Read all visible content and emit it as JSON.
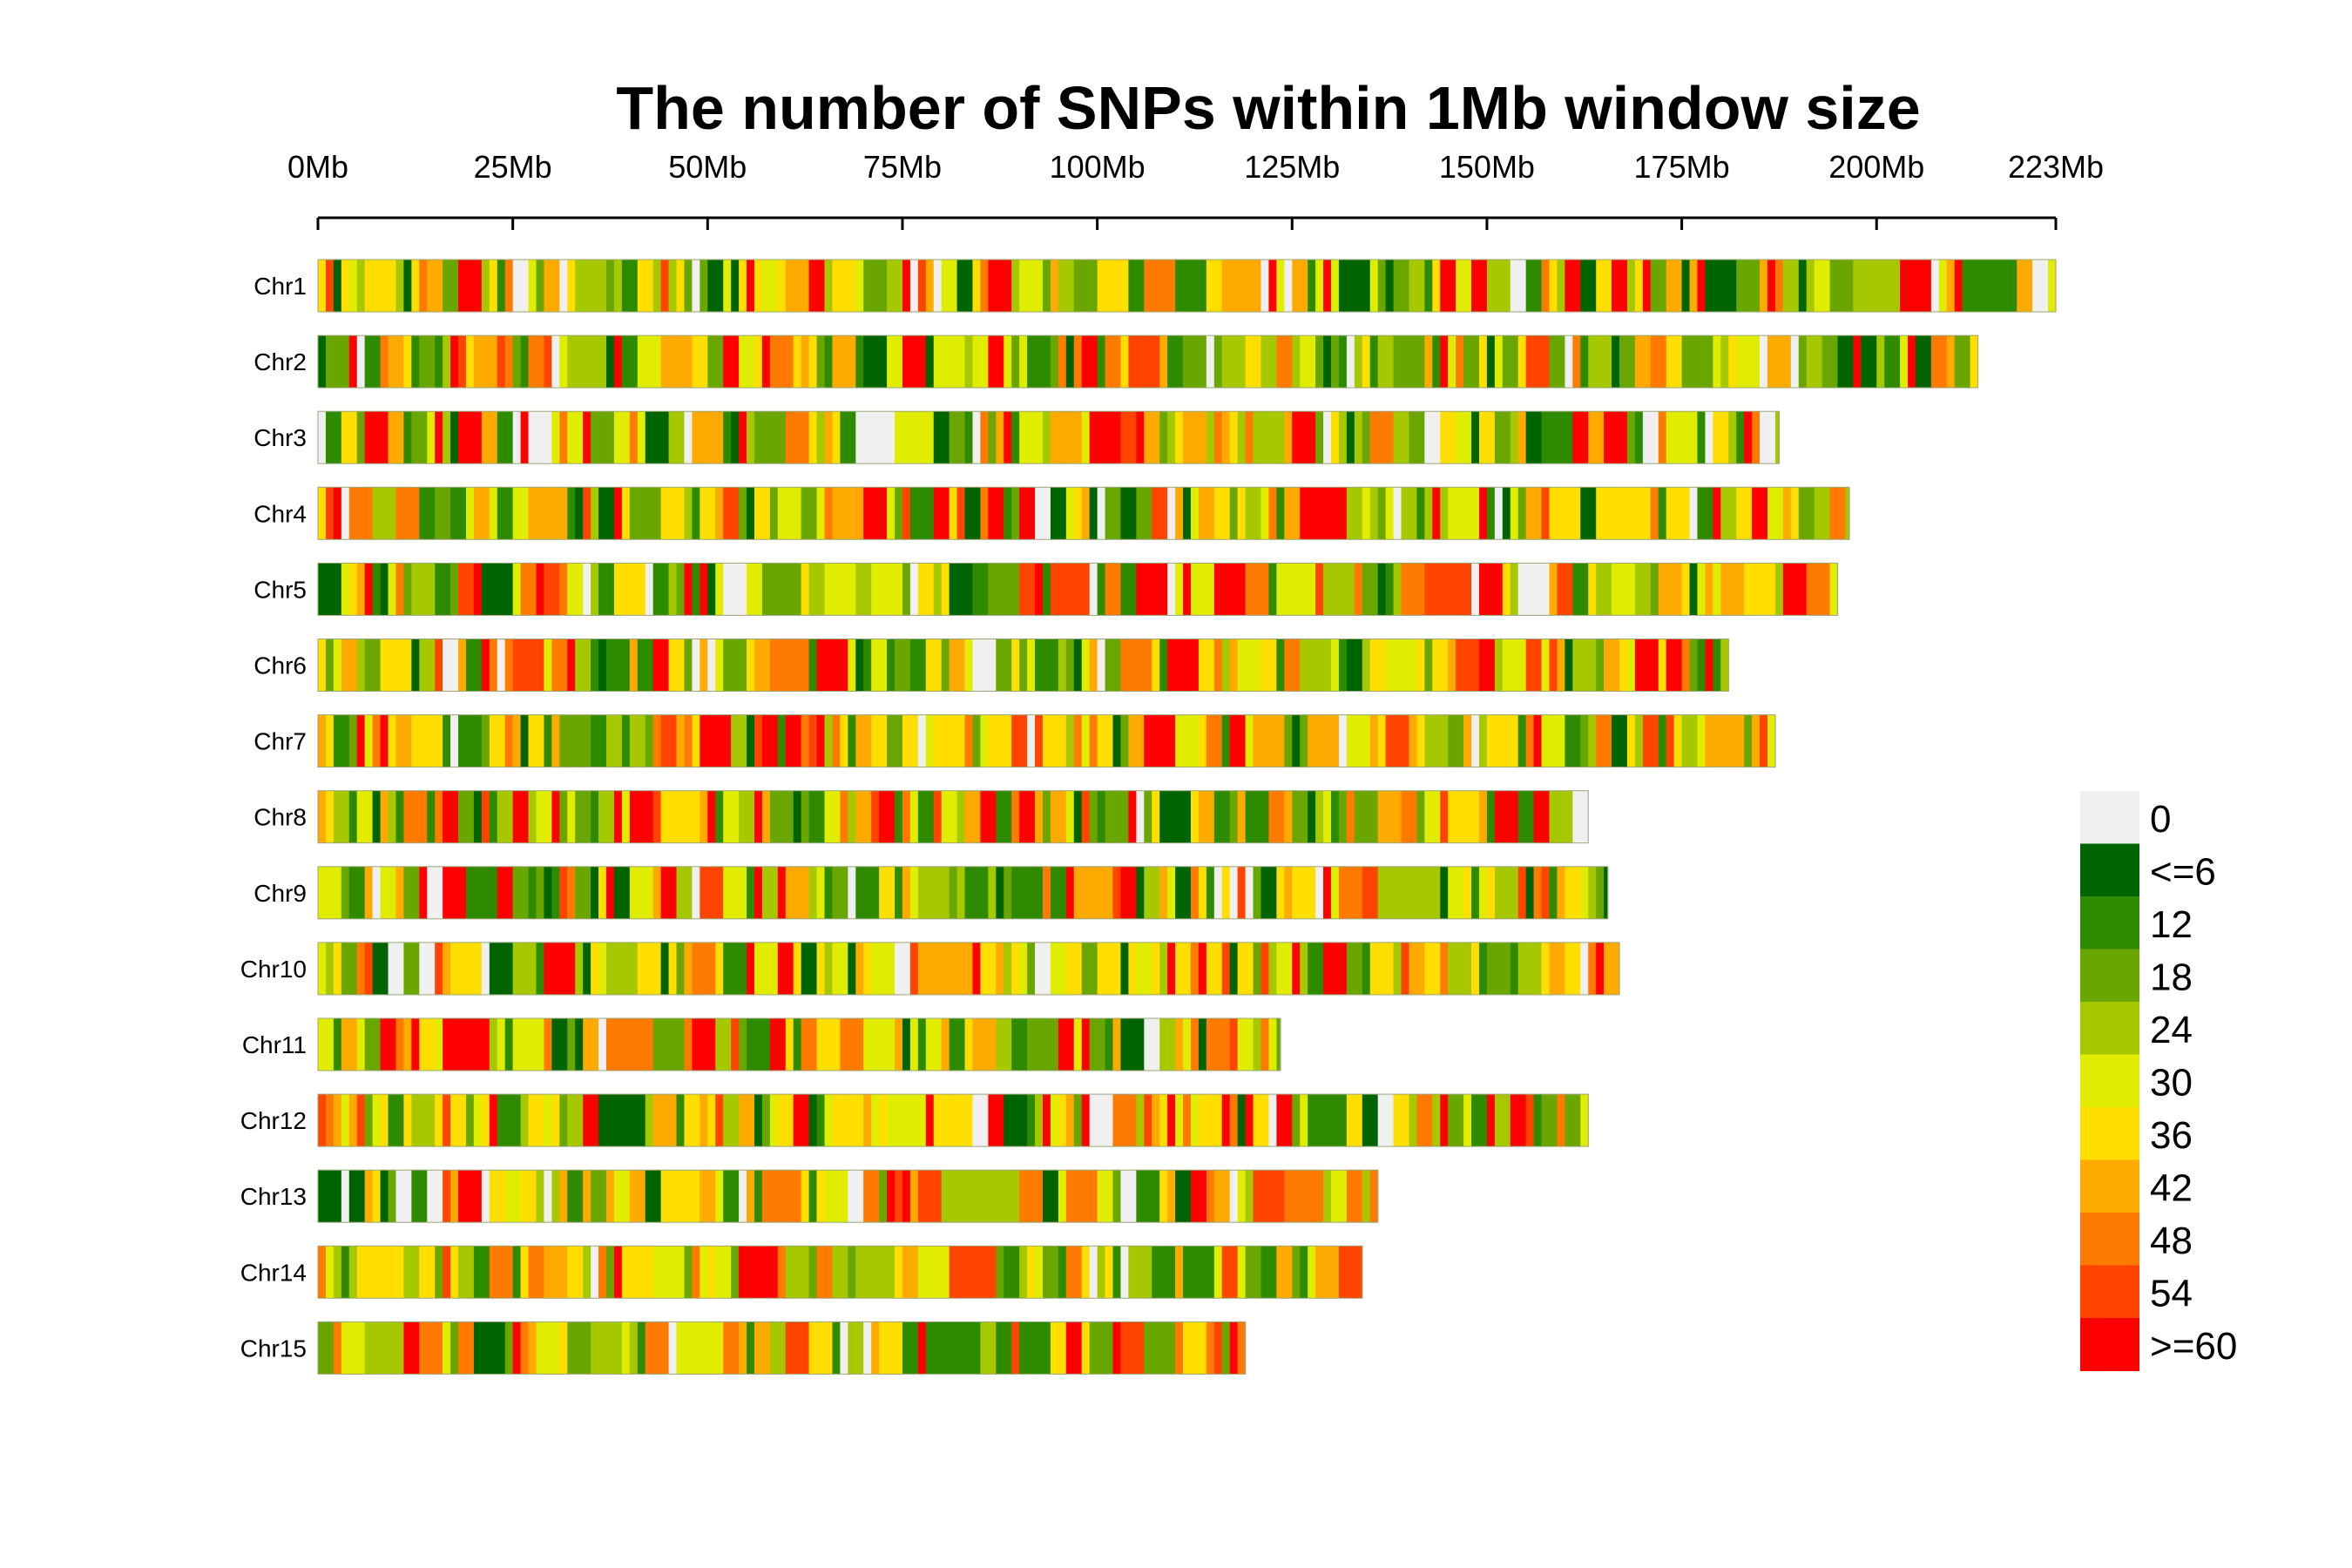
{
  "chart_data": {
    "type": "heatmap",
    "title": "The number of SNPs within 1Mb window size",
    "x_axis": {
      "min": 0,
      "max": 223,
      "unit": "Mb",
      "tick_values": [
        0,
        25,
        50,
        75,
        100,
        125,
        150,
        175,
        200,
        223
      ],
      "tick_labels": [
        "0Mb",
        "25Mb",
        "50Mb",
        "75Mb",
        "100Mb",
        "125Mb",
        "150Mb",
        "175Mb",
        "200Mb",
        "223Mb"
      ]
    },
    "window_size_mb": 1,
    "chromosomes": [
      {
        "name": "Chr1",
        "length_mb": 223,
        "seed": 11
      },
      {
        "name": "Chr2",
        "length_mb": 213,
        "seed": 23
      },
      {
        "name": "Chr3",
        "length_mb": 187.5,
        "seed": 37
      },
      {
        "name": "Chr4",
        "length_mb": 196.5,
        "seed": 41
      },
      {
        "name": "Chr5",
        "length_mb": 195,
        "seed": 53
      },
      {
        "name": "Chr6",
        "length_mb": 181,
        "seed": 67
      },
      {
        "name": "Chr7",
        "length_mb": 187,
        "seed": 71
      },
      {
        "name": "Chr8",
        "length_mb": 163,
        "seed": 83
      },
      {
        "name": "Chr9",
        "length_mb": 165.5,
        "seed": 97
      },
      {
        "name": "Chr10",
        "length_mb": 167,
        "seed": 101
      },
      {
        "name": "Chr11",
        "length_mb": 123.5,
        "seed": 113
      },
      {
        "name": "Chr12",
        "length_mb": 163,
        "seed": 127
      },
      {
        "name": "Chr13",
        "length_mb": 136,
        "seed": 131
      },
      {
        "name": "Chr14",
        "length_mb": 134,
        "seed": 149
      },
      {
        "name": "Chr15",
        "length_mb": 119,
        "seed": 151
      }
    ],
    "legend": {
      "placement": "right",
      "bins": [
        {
          "label": "0",
          "color": "#f0f0f0"
        },
        {
          "label": "<=6",
          "color": "#006400"
        },
        {
          "label": "12",
          "color": "#2e8b00"
        },
        {
          "label": "18",
          "color": "#6aa600"
        },
        {
          "label": "24",
          "color": "#a6c800"
        },
        {
          "label": "30",
          "color": "#e0ec00"
        },
        {
          "label": "36",
          "color": "#ffde00"
        },
        {
          "label": "42",
          "color": "#ffaa00"
        },
        {
          "label": "48",
          "color": "#ff7a00"
        },
        {
          "label": "54",
          "color": "#ff4400"
        },
        {
          "label": ">=60",
          "color": "#ff0000"
        }
      ]
    }
  }
}
